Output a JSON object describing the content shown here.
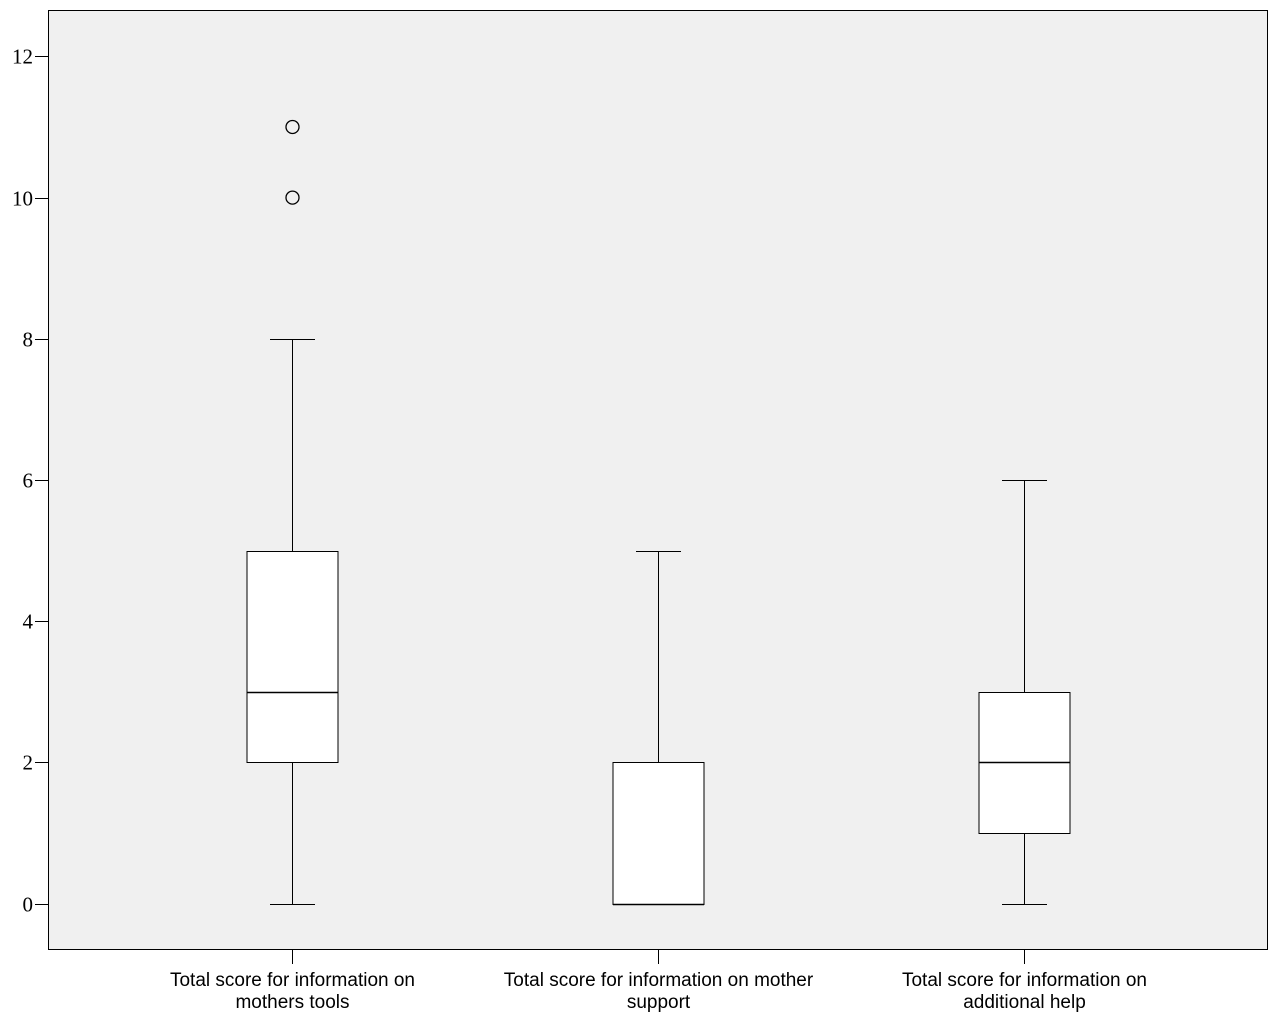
{
  "chart_data": {
    "type": "boxplot",
    "title": "",
    "xlabel": "",
    "ylabel": "",
    "ylim": [
      -0.65,
      12.65
    ],
    "yticks": [
      0,
      2,
      4,
      6,
      8,
      10,
      12
    ],
    "grid": false,
    "legend": "none",
    "colors": {
      "plot_background": "#f0f0f0",
      "box_fill": "#ffffff",
      "stroke": "#000000"
    },
    "categories": [
      [
        "Total score for information on",
        "mothers tools"
      ],
      [
        "Total score for information on mother",
        "support"
      ],
      [
        "Total score for information on",
        "additional help"
      ]
    ],
    "boxes": [
      {
        "whisker_low": 0,
        "q1": 2,
        "median": 3,
        "q3": 5,
        "whisker_high": 8,
        "outliers": [
          10,
          11
        ]
      },
      {
        "whisker_low": 0,
        "q1": 0,
        "median": 0,
        "q3": 2,
        "whisker_high": 5,
        "outliers": []
      },
      {
        "whisker_low": 0,
        "q1": 1,
        "median": 2,
        "q3": 3,
        "whisker_high": 6,
        "outliers": []
      }
    ]
  }
}
